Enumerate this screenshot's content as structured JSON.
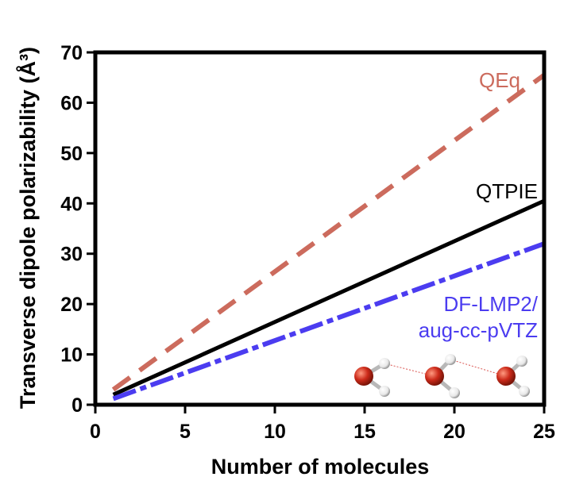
{
  "chart_data": {
    "type": "line",
    "title": "",
    "xlabel": "Number of molecules",
    "ylabel": "Transverse dipole polarizability (Å³)",
    "xlim": [
      0,
      25
    ],
    "ylim": [
      0,
      70
    ],
    "xticks": [
      0,
      5,
      10,
      15,
      20,
      25
    ],
    "yticks": [
      0,
      10,
      20,
      30,
      40,
      50,
      60,
      70
    ],
    "grid": false,
    "legend": "inline labels",
    "series": [
      {
        "name": "QEq",
        "color": "#cc6b5d",
        "style": "dashed",
        "x": [
          1,
          25
        ],
        "y": [
          3.0,
          65.5
        ]
      },
      {
        "name": "QTPIE",
        "color": "#000000",
        "style": "solid",
        "x": [
          1,
          25
        ],
        "y": [
          2.0,
          40.5
        ]
      },
      {
        "name": "DF-LMP2/",
        "name_line2": "aug-cc-pVTZ",
        "color": "#4b3cf0",
        "style": "dashdot",
        "x": [
          1,
          25
        ],
        "y": [
          1.2,
          32.0
        ]
      }
    ],
    "inset": {
      "icon": "water-trimer-molecules-icon",
      "atom_color": "#cc2a1a",
      "hydrogen_color": "#e8e8e8"
    }
  }
}
